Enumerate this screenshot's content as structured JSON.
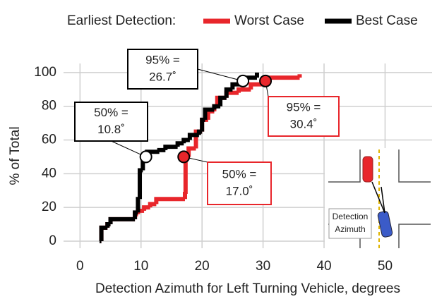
{
  "chart_data": {
    "type": "step",
    "legend_title": "Earliest Detection:",
    "x_label": "Detection Azimuth for Left Turning Vehicle, degrees",
    "y_label": "% of Total",
    "xlim": [
      -2.7,
      57.7
    ],
    "ylim": [
      -4.2,
      105.4
    ],
    "xticks": [
      0,
      10,
      20,
      30,
      40,
      50
    ],
    "yticks": [
      0,
      20,
      40,
      60,
      80,
      100
    ],
    "grid": true,
    "series": [
      {
        "name": "Worst Case",
        "color": "#e8262b",
        "x": [
          3.2,
          3.5,
          4.5,
          5,
          8.5,
          9,
          9.5,
          10.5,
          11.5,
          12.5,
          17.2,
          17.3,
          17.8,
          19,
          20,
          21,
          22,
          22.5,
          24,
          26,
          28,
          30.4,
          31,
          36
        ],
        "values": [
          0,
          8,
          10,
          13,
          13,
          16,
          18,
          20,
          22,
          25,
          28,
          50,
          55,
          65,
          72,
          77,
          80,
          85,
          88,
          90,
          93,
          95,
          97,
          99
        ]
      },
      {
        "name": "Best Case",
        "color": "#000000",
        "x": [
          3.2,
          3.5,
          4.5,
          5,
          9,
          9.5,
          9.8,
          10.3,
          11,
          13,
          14,
          16,
          17,
          18,
          19.5,
          20,
          20.5,
          22,
          23,
          24,
          25,
          26.5,
          27,
          29
        ],
        "values": [
          0,
          8,
          10,
          13,
          17,
          25,
          42,
          48,
          53,
          54,
          56,
          58,
          60,
          63,
          65,
          72,
          78,
          80,
          85,
          90,
          93,
          95,
          97,
          100
        ]
      }
    ],
    "annotations": [
      {
        "series": 1,
        "x": 26.7,
        "y": 95,
        "text": [
          "95% =",
          "26.7˚"
        ]
      },
      {
        "series": 1,
        "x": 10.8,
        "y": 50,
        "text": [
          "50% =",
          "10.8˚"
        ]
      },
      {
        "series": 0,
        "x": 17.0,
        "y": 50,
        "text": [
          "50% =",
          "17.0˚"
        ]
      },
      {
        "series": 0,
        "x": 30.4,
        "y": 95,
        "text": [
          "95% =",
          "30.4˚"
        ]
      }
    ],
    "inset_text": [
      "Detection",
      "Azimuth"
    ]
  }
}
